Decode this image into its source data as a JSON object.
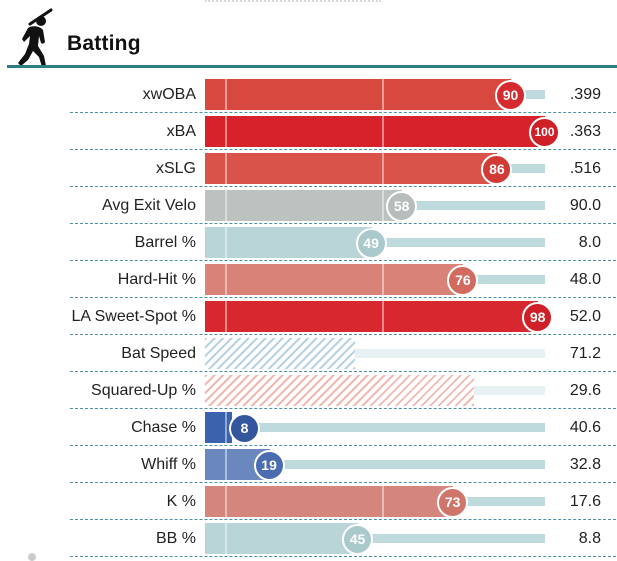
{
  "section": {
    "title": "Batting",
    "icon": "batter-silhouette-icon"
  },
  "colors": {
    "accent": "#2f7d80",
    "track": "#bfdadd",
    "separator": "#4f8fa0"
  },
  "rows": [
    {
      "label": "xwOBA",
      "percentile": 90,
      "value": ".399",
      "color": "#d7493f",
      "badge": "#d52a2f",
      "show_badge": true
    },
    {
      "label": "xBA",
      "percentile": 100,
      "value": ".363",
      "color": "#d7212b",
      "badge": "#cf1f27",
      "show_badge": true
    },
    {
      "label": "xSLG",
      "percentile": 86,
      "value": ".516",
      "color": "#d9534a",
      "badge": "#d23b35",
      "show_badge": true
    },
    {
      "label": "Avg Exit Velo",
      "percentile": 58,
      "value": "90.0",
      "color": "#bcc2c0",
      "badge": "#b7bdbc",
      "show_badge": true
    },
    {
      "label": "Barrel %",
      "percentile": 49,
      "value": "8.0",
      "color": "#b9d5d8",
      "badge": "#a9c9cc",
      "show_badge": true
    },
    {
      "label": "Hard-Hit %",
      "percentile": 76,
      "value": "48.0",
      "color": "#d98378",
      "badge": "#d26a5f",
      "show_badge": true
    },
    {
      "label": "LA Sweet-Spot %",
      "percentile": 98,
      "value": "52.0",
      "color": "#d8282f",
      "badge": "#cf1f27",
      "show_badge": true
    },
    {
      "label": "Bat Speed",
      "percentile": 44,
      "value": "71.2",
      "color": "hatch-blue",
      "badge": "",
      "show_badge": false
    },
    {
      "label": "Squared-Up %",
      "percentile": 79,
      "value": "29.6",
      "color": "hatch-red",
      "badge": "",
      "show_badge": false
    },
    {
      "label": "Chase %",
      "percentile": 8,
      "value": "40.6",
      "color": "#3b63ad",
      "badge": "#33569c",
      "show_badge": true
    },
    {
      "label": "Whiff %",
      "percentile": 19,
      "value": "32.8",
      "color": "#6b88be",
      "badge": "#4a6cb0",
      "show_badge": true
    },
    {
      "label": "K %",
      "percentile": 73,
      "value": "17.6",
      "color": "#d4867d",
      "badge": "#d0756a",
      "show_badge": true
    },
    {
      "label": "BB %",
      "percentile": 45,
      "value": "8.8",
      "color": "#b9d5d8",
      "badge": "#a9c9cc",
      "show_badge": true
    }
  ]
}
